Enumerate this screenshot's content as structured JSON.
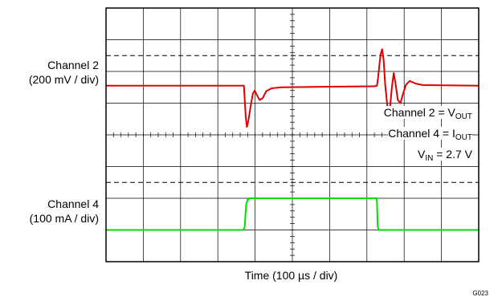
{
  "chart_data": {
    "type": "line",
    "xlabel": "Time (100 µs / div)",
    "figure_id": "G023",
    "x_divisions": 10,
    "y_divisions": 8,
    "x_unit": "div",
    "y_unit": "div",
    "channels": [
      {
        "name": "Channel 2",
        "scale": "(200 mV / div)",
        "signal": "VOUT",
        "color": "#dd0000",
        "ground_marker_div": 5.0
      },
      {
        "name": "Channel 4",
        "scale": "(100 mA / div)",
        "signal": "IOUT",
        "color": "#00dd00",
        "ground_marker_div": 1.0
      }
    ],
    "series": [
      {
        "name": "Channel 2 = VOUT",
        "color": "#dd0000",
        "points": [
          [
            0,
            5.55
          ],
          [
            3.7,
            5.55
          ],
          [
            3.72,
            5.15
          ],
          [
            3.75,
            4.55
          ],
          [
            3.78,
            4.25
          ],
          [
            3.82,
            4.45
          ],
          [
            3.88,
            4.9
          ],
          [
            3.94,
            5.3
          ],
          [
            3.99,
            5.4
          ],
          [
            4.05,
            5.25
          ],
          [
            4.12,
            5.1
          ],
          [
            4.2,
            5.15
          ],
          [
            4.3,
            5.38
          ],
          [
            4.45,
            5.47
          ],
          [
            4.7,
            5.5
          ],
          [
            6.0,
            5.52
          ],
          [
            7.2,
            5.53
          ],
          [
            7.27,
            5.55
          ],
          [
            7.3,
            5.8
          ],
          [
            7.33,
            6.15
          ],
          [
            7.37,
            6.55
          ],
          [
            7.41,
            6.7
          ],
          [
            7.45,
            6.35
          ],
          [
            7.49,
            5.6
          ],
          [
            7.54,
            5.0
          ],
          [
            7.58,
            4.7
          ],
          [
            7.62,
            4.85
          ],
          [
            7.67,
            5.5
          ],
          [
            7.72,
            5.95
          ],
          [
            7.77,
            5.6
          ],
          [
            7.83,
            5.1
          ],
          [
            7.9,
            5.0
          ],
          [
            7.97,
            5.3
          ],
          [
            8.05,
            5.58
          ],
          [
            8.15,
            5.7
          ],
          [
            8.3,
            5.62
          ],
          [
            8.5,
            5.57
          ],
          [
            10,
            5.55
          ]
        ]
      },
      {
        "name": "Channel 4 = IOUT",
        "color": "#00dd00",
        "points": [
          [
            0,
            1.0
          ],
          [
            3.68,
            1.0
          ],
          [
            3.72,
            1.08
          ],
          [
            3.76,
            1.8
          ],
          [
            3.8,
            1.95
          ],
          [
            3.86,
            2.0
          ],
          [
            7.25,
            2.0
          ],
          [
            7.27,
            1.9
          ],
          [
            7.29,
            1.1
          ],
          [
            7.32,
            1.0
          ],
          [
            10,
            1.0
          ]
        ]
      }
    ],
    "annotations": [
      {
        "text": "Channel 2 = V",
        "sub": "OUT"
      },
      {
        "text": "Channel 4 = I",
        "sub": "OUT"
      },
      {
        "text": "V",
        "sub": "IN",
        "tail": " = 2.7 V"
      }
    ]
  }
}
